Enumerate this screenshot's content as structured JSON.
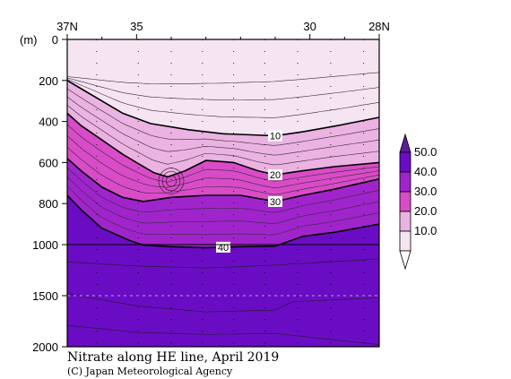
{
  "chart_data": {
    "type": "heatmap",
    "title": "Nitrate along HE line, April 2019",
    "credit": "(C) Japan Meteorological Agency",
    "y_unit": "(m)",
    "x_ticks": [
      {
        "lat": 37,
        "label": "37N"
      },
      {
        "lat": 35,
        "label": "35"
      },
      {
        "lat": 30,
        "label": "30"
      },
      {
        "lat": 28,
        "label": "28N"
      }
    ],
    "x_range": [
      37,
      28
    ],
    "y_ticks": [
      {
        "depth": 0,
        "label": "0"
      },
      {
        "depth": 200,
        "label": "200"
      },
      {
        "depth": 400,
        "label": "400"
      },
      {
        "depth": 600,
        "label": "600"
      },
      {
        "depth": 800,
        "label": "800"
      },
      {
        "depth": 1000,
        "label": "1000"
      },
      {
        "depth": 1500,
        "label": "1500"
      },
      {
        "depth": 2000,
        "label": "2000"
      }
    ],
    "y_break_depth": 1000,
    "station_lats": [
      36.15,
      34.95,
      34.0,
      33.1,
      32.2,
      31.3,
      30.35,
      29.4,
      28.45
    ],
    "colorbar": {
      "labels": [
        "50.0",
        "40.0",
        "30.0",
        "20.0",
        "10.0"
      ],
      "bins": [
        {
          "min": 40,
          "max": 50,
          "color": "#6a0cc4"
        },
        {
          "min": 30,
          "max": 40,
          "color": "#a024cc"
        },
        {
          "min": 20,
          "max": 30,
          "color": "#d84cc8"
        },
        {
          "min": 10,
          "max": 20,
          "color": "#eab3e1"
        },
        {
          "min": 0,
          "max": 10,
          "color": "#f5e4f1"
        }
      ],
      "over_color": "#5a1b9e",
      "under_color": "#ffffff"
    },
    "bands": [
      {
        "value_range": "0-10",
        "color": "#f5e4f1"
      },
      {
        "value_range": "10-20",
        "color": "#eab3e1"
      },
      {
        "value_range": "20-30",
        "color": "#d84cc8"
      },
      {
        "value_range": "30-40",
        "color": "#a024cc"
      },
      {
        "value_range": ">40",
        "color": "#6a0cc4"
      }
    ],
    "contours": [
      {
        "value": 10,
        "label": "10",
        "label_lat": 31.0,
        "points": [
          [
            37,
            200
          ],
          [
            36.6,
            240
          ],
          [
            36,
            300
          ],
          [
            35.4,
            360
          ],
          [
            34.6,
            410
          ],
          [
            33.5,
            440
          ],
          [
            32.5,
            460
          ],
          [
            31.7,
            465
          ],
          [
            31,
            470
          ],
          [
            30.2,
            450
          ],
          [
            29.2,
            420
          ],
          [
            28,
            380
          ]
        ]
      },
      {
        "value": 20,
        "label": "20",
        "label_lat": 31.0,
        "points": [
          [
            37,
            360
          ],
          [
            36.6,
            420
          ],
          [
            36,
            490
          ],
          [
            35.4,
            560
          ],
          [
            35,
            600
          ],
          [
            34.5,
            650
          ],
          [
            34.1,
            670
          ],
          [
            33.6,
            640
          ],
          [
            33.0,
            590
          ],
          [
            32.2,
            600
          ],
          [
            31.5,
            640
          ],
          [
            31,
            660
          ],
          [
            30.2,
            640
          ],
          [
            29.3,
            620
          ],
          [
            28,
            600
          ]
        ]
      },
      {
        "value": 30,
        "label": "30",
        "label_lat": 31.0,
        "points": [
          [
            37,
            580
          ],
          [
            36.6,
            640
          ],
          [
            36,
            720
          ],
          [
            35.4,
            770
          ],
          [
            34.8,
            790
          ],
          [
            34,
            770
          ],
          [
            33.0,
            760
          ],
          [
            32.0,
            760
          ],
          [
            31,
            790
          ],
          [
            30.2,
            760
          ],
          [
            29.3,
            730
          ],
          [
            28,
            680
          ]
        ]
      },
      {
        "value": 40,
        "label": "40",
        "label_lat": 32.5,
        "points": [
          [
            37,
            760
          ],
          [
            36.6,
            830
          ],
          [
            36,
            920
          ],
          [
            35.2,
            980
          ],
          [
            34.8,
            1005
          ],
          [
            34,
            1020
          ],
          [
            33.0,
            1030
          ],
          [
            32.0,
            1020
          ],
          [
            31,
            1015
          ],
          [
            30.2,
            960
          ],
          [
            29.3,
            940
          ],
          [
            28,
            900
          ]
        ]
      }
    ]
  }
}
